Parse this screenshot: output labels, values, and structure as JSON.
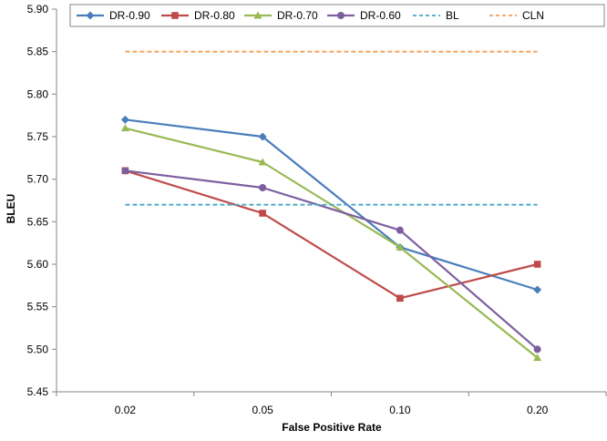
{
  "chart_data": {
    "type": "line",
    "xlabel": "False Positive Rate",
    "ylabel": "BLEU",
    "categories": [
      "0.02",
      "0.05",
      "0.10",
      "0.20"
    ],
    "ylim": [
      5.45,
      5.9
    ],
    "yticks": [
      "5.45",
      "5.50",
      "5.55",
      "5.60",
      "5.65",
      "5.70",
      "5.75",
      "5.80",
      "5.85",
      "5.90"
    ],
    "grid": false,
    "legend_position": "top",
    "series": [
      {
        "name": "DR-0.90",
        "values": [
          5.77,
          5.75,
          5.62,
          5.57
        ],
        "color": "#4a7ebb",
        "marker": "diamond",
        "dashed": false
      },
      {
        "name": "DR-0.80",
        "values": [
          5.71,
          5.66,
          5.56,
          5.6
        ],
        "color": "#be4b48",
        "marker": "square",
        "dashed": false
      },
      {
        "name": "DR-0.70",
        "values": [
          5.76,
          5.72,
          5.62,
          5.49
        ],
        "color": "#98b954",
        "marker": "triangle",
        "dashed": false
      },
      {
        "name": "DR-0.60",
        "values": [
          5.71,
          5.69,
          5.64,
          5.5
        ],
        "color": "#7d5fa0",
        "marker": "circle",
        "dashed": false
      },
      {
        "name": "BL",
        "values": [
          5.67,
          5.67,
          5.67,
          5.67
        ],
        "color": "#46aac5",
        "marker": "none",
        "dashed": true
      },
      {
        "name": "CLN",
        "values": [
          5.85,
          5.85,
          5.85,
          5.85
        ],
        "color": "#f59d56",
        "marker": "none",
        "dashed": true
      }
    ]
  }
}
